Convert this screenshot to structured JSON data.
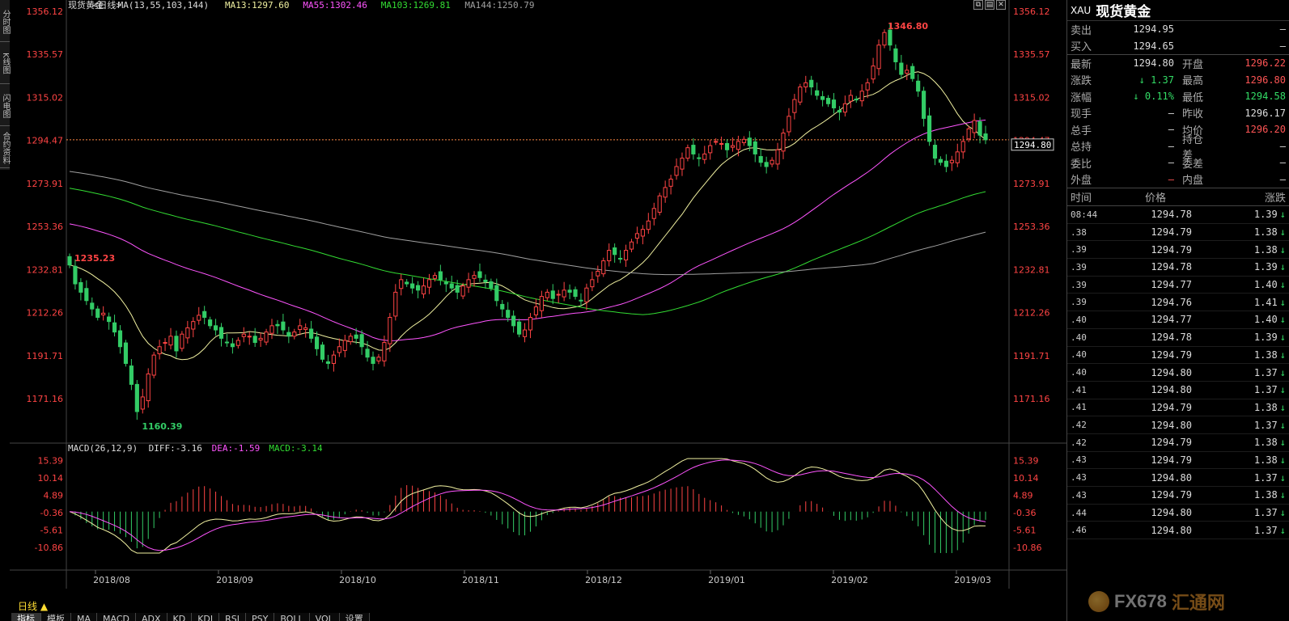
{
  "rail_tabs": [
    "分时图",
    "K线图",
    "闪电图",
    "合约资料"
  ],
  "chart_header": {
    "symbol": "现货黄金",
    "period": "<日线>",
    "ma_label": "MA(13,55,103,144)",
    "ma13": "MA13:1297.60",
    "ma55": "MA55:1302.46",
    "ma103": "MA103:1269.81",
    "ma144": "MA144:1250.79"
  },
  "macd_header": {
    "name": "MACD(26,12,9)",
    "diff": "DIFF:-3.16",
    "dea": "DEA:-1.59",
    "macd": "MACD:-3.14"
  },
  "colors": {
    "up": "#ff4444",
    "down": "#33cc66",
    "ma13": "#f0f0a0",
    "ma55": "#ff55ff",
    "ma103": "#33dd33",
    "ma144": "#a0a0a0",
    "diff": "#f0f0a0",
    "dea": "#ff55ff",
    "axis_text": "#ff4444"
  },
  "price_axis": [
    "1356.12",
    "1335.57",
    "1315.02",
    "1294.47",
    "1273.91",
    "1253.36",
    "1232.81",
    "1212.26",
    "1191.71",
    "1171.16"
  ],
  "macd_axis": [
    "15.39",
    "10.14",
    "4.89",
    "-0.36",
    "-5.61",
    "-10.86"
  ],
  "date_axis": [
    "2018/08",
    "2018/09",
    "2018/10",
    "2018/11",
    "2018/12",
    "2019/01",
    "2019/02",
    "2019/03"
  ],
  "annotations": {
    "high": "1346.80",
    "low": "1160.39",
    "start": "1235.23",
    "last_price_tag": "1294.80"
  },
  "chart_data": {
    "type": "candlestick",
    "title": "现货黄金<日线>",
    "period": "日线",
    "ylim": [
      1160,
      1357
    ],
    "x_range": [
      "2018/08",
      "2019/03"
    ],
    "y_ticks": [
      1356.12,
      1335.57,
      1315.02,
      1294.47,
      1273.91,
      1253.36,
      1232.81,
      1212.26,
      1191.71,
      1171.16
    ],
    "close_series": [
      1235,
      1226,
      1222,
      1218,
      1214,
      1210,
      1212,
      1208,
      1203,
      1196,
      1188,
      1178,
      1165,
      1172,
      1183,
      1192,
      1196,
      1198,
      1201,
      1194,
      1202,
      1205,
      1208,
      1211,
      1210,
      1206,
      1204,
      1200,
      1198,
      1196,
      1199,
      1202,
      1201,
      1198,
      1200,
      1203,
      1206,
      1206,
      1204,
      1201,
      1203,
      1206,
      1205,
      1200,
      1195,
      1190,
      1188,
      1192,
      1196,
      1199,
      1201,
      1200,
      1196,
      1191,
      1188,
      1191,
      1198,
      1210,
      1222,
      1228,
      1226,
      1224,
      1223,
      1225,
      1228,
      1230,
      1228,
      1226,
      1224,
      1222,
      1225,
      1228,
      1230,
      1229,
      1227,
      1224,
      1218,
      1214,
      1210,
      1206,
      1202,
      1204,
      1210,
      1215,
      1220,
      1222,
      1219,
      1221,
      1223,
      1222,
      1220,
      1218,
      1224,
      1228,
      1232,
      1237,
      1242,
      1240,
      1238,
      1242,
      1246,
      1250,
      1252,
      1256,
      1262,
      1268,
      1272,
      1276,
      1282,
      1286,
      1291,
      1288,
      1286,
      1288,
      1292,
      1294,
      1293,
      1290,
      1292,
      1294,
      1295,
      1292,
      1288,
      1284,
      1282,
      1285,
      1290,
      1298,
      1306,
      1314,
      1320,
      1322,
      1320,
      1316,
      1314,
      1312,
      1310,
      1308,
      1312,
      1316,
      1314,
      1318,
      1322,
      1330,
      1340,
      1346,
      1340,
      1332,
      1326,
      1328,
      1324,
      1318,
      1305,
      1294,
      1286,
      1284,
      1282,
      1285,
      1289,
      1294,
      1300,
      1304,
      1297,
      1294.8
    ],
    "ma_series": [
      {
        "name": "MA13",
        "last": 1297.6
      },
      {
        "name": "MA55",
        "last": 1302.46
      },
      {
        "name": "MA103",
        "last": 1269.81
      },
      {
        "name": "MA144",
        "last": 1250.79
      }
    ],
    "high": 1346.8,
    "low": 1160.39,
    "first": 1235.23,
    "last": 1294.8,
    "macd": {
      "diff": -3.16,
      "dea": -1.59,
      "macd": -3.14,
      "ylim": [
        -13,
        17
      ]
    }
  },
  "quote": {
    "code": "XAU",
    "name": "现货黄金",
    "rows1": [
      {
        "l": "卖出",
        "v": "1294.95",
        "l2": "",
        "v2": "–"
      },
      {
        "l": "买入",
        "v": "1294.65",
        "l2": "",
        "v2": "–"
      }
    ],
    "rows2": [
      {
        "l": "最新",
        "v": "1294.80",
        "vc": "white",
        "l2": "开盘",
        "v2": "1296.22",
        "v2c": "red"
      },
      {
        "l": "涨跌",
        "v": "↓ 1.37",
        "vc": "green",
        "l2": "最高",
        "v2": "1296.80",
        "v2c": "red"
      },
      {
        "l": "涨幅",
        "v": "↓ 0.11%",
        "vc": "green",
        "l2": "最低",
        "v2": "1294.58",
        "v2c": "green"
      },
      {
        "l": "现手",
        "v": "–",
        "vc": "white",
        "l2": "昨收",
        "v2": "1296.17",
        "v2c": "white"
      },
      {
        "l": "总手",
        "v": "–",
        "vc": "white",
        "l2": "均价",
        "v2": "1296.20",
        "v2c": "red"
      },
      {
        "l": "总持",
        "v": "–",
        "vc": "white",
        "l2": "持仓差",
        "v2": "–",
        "v2c": "white"
      },
      {
        "l": "委比",
        "v": "–",
        "vc": "white",
        "l2": "委差",
        "v2": "–",
        "v2c": "white"
      },
      {
        "l": "外盘",
        "v": "–",
        "vc": "red",
        "l2": "内盘",
        "v2": "–",
        "v2c": "white"
      }
    ],
    "ticks_header": {
      "time": "时间",
      "price": "价格",
      "change": "涨跌"
    },
    "ticks": [
      {
        "t": "08:44",
        "p": "1294.78",
        "c": "1.39"
      },
      {
        "t": ".38",
        "p": "1294.79",
        "c": "1.38"
      },
      {
        "t": ".39",
        "p": "1294.79",
        "c": "1.38"
      },
      {
        "t": ".39",
        "p": "1294.78",
        "c": "1.39"
      },
      {
        "t": ".39",
        "p": "1294.77",
        "c": "1.40"
      },
      {
        "t": ".39",
        "p": "1294.76",
        "c": "1.41"
      },
      {
        "t": ".40",
        "p": "1294.77",
        "c": "1.40"
      },
      {
        "t": ".40",
        "p": "1294.78",
        "c": "1.39"
      },
      {
        "t": ".40",
        "p": "1294.79",
        "c": "1.38"
      },
      {
        "t": ".40",
        "p": "1294.80",
        "c": "1.37"
      },
      {
        "t": ".41",
        "p": "1294.80",
        "c": "1.37"
      },
      {
        "t": ".41",
        "p": "1294.79",
        "c": "1.38"
      },
      {
        "t": ".42",
        "p": "1294.80",
        "c": "1.37"
      },
      {
        "t": ".42",
        "p": "1294.79",
        "c": "1.38"
      },
      {
        "t": ".43",
        "p": "1294.79",
        "c": "1.38"
      },
      {
        "t": ".43",
        "p": "1294.80",
        "c": "1.37"
      },
      {
        "t": ".43",
        "p": "1294.79",
        "c": "1.38"
      },
      {
        "t": ".44",
        "p": "1294.80",
        "c": "1.37"
      },
      {
        "t": ".46",
        "p": "1294.80",
        "c": "1.37"
      }
    ]
  },
  "bottom": {
    "period_btn": "日线 ▲",
    "tabs": [
      "指标",
      "模板",
      "MA",
      "MACD",
      "ADX",
      "KD",
      "KDJ",
      "RSI",
      "PSY",
      "BOLL",
      "VOL",
      "设置"
    ]
  },
  "logo": {
    "text": "FX678",
    "cn": "汇通网"
  }
}
